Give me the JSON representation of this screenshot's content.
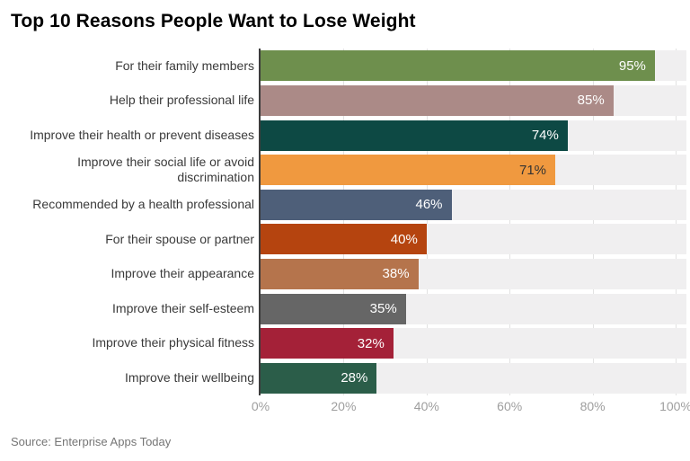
{
  "title": "Top 10 Reasons People Want to Lose Weight",
  "source": "Source: Enterprise Apps Today",
  "chart_data": {
    "type": "bar",
    "orientation": "horizontal",
    "title": "Top 10 Reasons People Want to Lose Weight",
    "xlabel": "",
    "ylabel": "",
    "unit": "%",
    "xlim": [
      0,
      100
    ],
    "x_ticks": [
      "0%",
      "20%",
      "40%",
      "60%",
      "80%",
      "100%"
    ],
    "x_tick_values": [
      0,
      20,
      40,
      60,
      80,
      100
    ],
    "grid": true,
    "legend": false,
    "categories": [
      "For their family members",
      "Help their professional life",
      "Improve their health or prevent diseases",
      "Improve their social life or avoid discrimination",
      "Recommended by a health professional",
      "For their spouse or partner",
      "Improve their appearance",
      "Improve their self-esteem",
      "Improve their physical fitness",
      "Improve their wellbeing"
    ],
    "values": [
      95,
      85,
      74,
      71,
      46,
      40,
      38,
      35,
      32,
      28
    ],
    "value_labels": [
      "95%",
      "85%",
      "74%",
      "71%",
      "46%",
      "40%",
      "38%",
      "35%",
      "32%",
      "28%"
    ],
    "bar_colors": [
      "#6e8f4d",
      "#ab8a87",
      "#0d4944",
      "#f0993f",
      "#4e5f79",
      "#b5440f",
      "#b5744c",
      "#666666",
      "#a42138",
      "#2b5d49"
    ],
    "value_label_colors": [
      "#ffffff",
      "#ffffff",
      "#ffffff",
      "#333333",
      "#ffffff",
      "#ffffff",
      "#ffffff",
      "#ffffff",
      "#ffffff",
      "#ffffff"
    ],
    "colors_note": {
      "track_background": "#f0eff0",
      "gridline": "#e2e2e2",
      "axis_line": "#3c3c3c",
      "tick_text": "#9e9e9e",
      "category_text": "#3a3a3a",
      "source_text": "#757575"
    }
  }
}
